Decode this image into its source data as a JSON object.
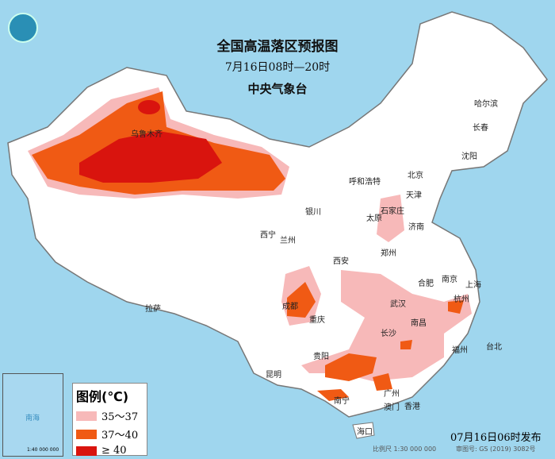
{
  "header": {
    "title": "全国高温落区预报图",
    "subtitle": "7月16日08时—20时",
    "issuer": "中央气象台"
  },
  "legend": {
    "title": "图例(℃)",
    "items": [
      {
        "label": "35～37",
        "color": "#f7b9b9"
      },
      {
        "label": "37～40",
        "color": "#f05a14"
      },
      {
        "label": "≥ 40",
        "color": "#d9140e"
      }
    ]
  },
  "cities": [
    "乌鲁木齐",
    "哈尔滨",
    "长春",
    "沈阳",
    "北京",
    "天津",
    "呼和浩特",
    "石家庄",
    "太原",
    "济南",
    "银川",
    "西宁",
    "兰州",
    "郑州",
    "西安",
    "合肥",
    "南京",
    "上海",
    "武汉",
    "杭州",
    "成都",
    "重庆",
    "南昌",
    "长沙",
    "拉萨",
    "福州",
    "台北",
    "贵阳",
    "昆明",
    "广州",
    "南宁",
    "香港",
    "澳门",
    "海口"
  ],
  "footer": {
    "issued": "07月16日06时发布",
    "scale": "比例尺 1:30 000 000",
    "map_number": "审图号: GS (2019) 3082号"
  },
  "inset": {
    "sea": "南海",
    "scale": "1:40 000 000"
  }
}
